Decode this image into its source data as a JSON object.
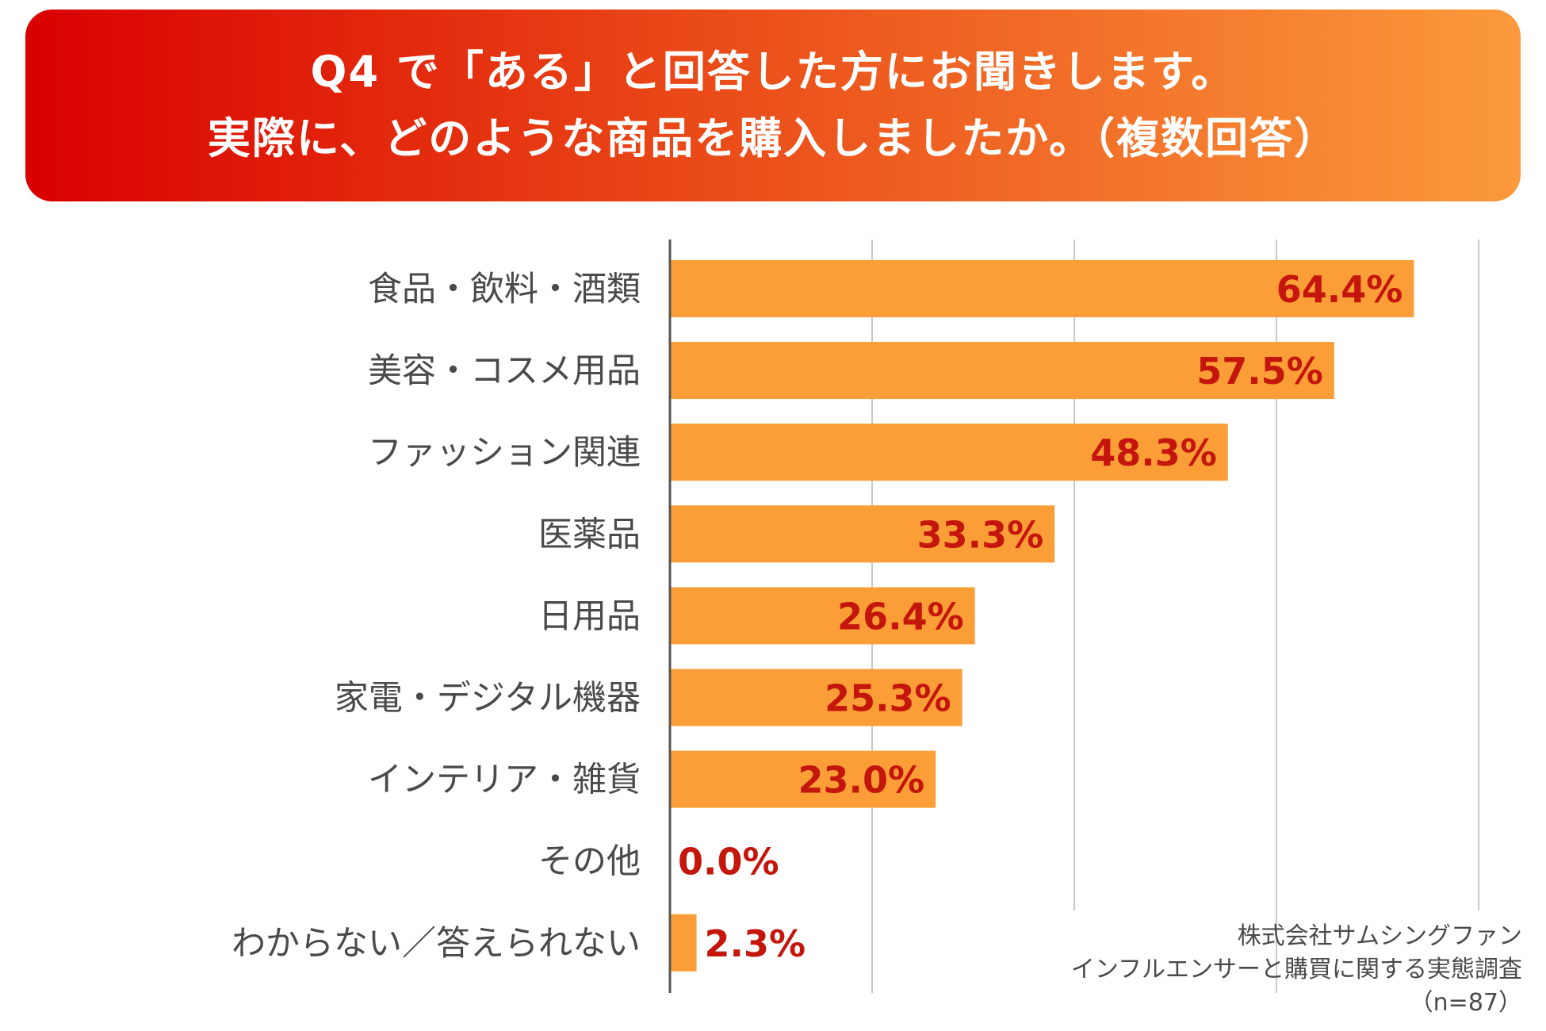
{
  "title": {
    "line1": "Q4 で「ある」と回答した方にお聞きします。",
    "line2": "実際に、どのような商品を購入しましたか。（複数回答）"
  },
  "chart_data": {
    "type": "bar",
    "orientation": "horizontal",
    "categories": [
      "食品・飲料・酒類",
      "美容・コスメ用品",
      "ファッション関連",
      "医薬品",
      "日用品",
      "家電・デジタル機器",
      "インテリア・雑貨",
      "その他",
      "わからない／答えられない"
    ],
    "values": [
      64.4,
      57.5,
      48.3,
      33.3,
      26.4,
      25.3,
      23.0,
      0.0,
      2.3
    ],
    "value_labels": [
      "64.4%",
      "57.5%",
      "48.3%",
      "33.3%",
      "26.4%",
      "25.3%",
      "23.0%",
      "0.0%",
      "2.3%"
    ],
    "xlim": [
      0,
      70
    ],
    "gridlines": [
      0,
      17.5,
      35,
      52.5,
      70
    ],
    "bar_color": "#fb9e37",
    "label_color": "#c4160c"
  },
  "source": {
    "line1": "株式会社サムシングファン",
    "line2": "インフルエンサーと購買に関する実態調査",
    "line3": "（n=87）"
  },
  "colors": {
    "gradient_start": "#d90000",
    "gradient_end": "#fb9a3c"
  }
}
